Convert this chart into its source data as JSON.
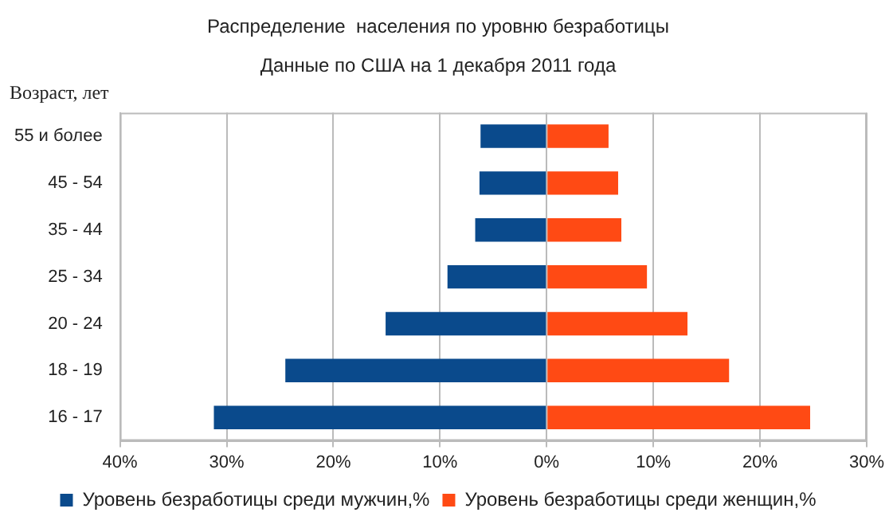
{
  "chart_data": {
    "type": "bar",
    "orientation": "horizontal",
    "stacked": true,
    "title": "Распределение  населения по уровню безработицы",
    "subtitle": "Данные по США на 1 декабря 2011 года",
    "ylabel": "Возраст, лет",
    "categories": [
      "55 и более",
      "45 - 54",
      "35 - 44",
      "25 - 34",
      "20 - 24",
      "18 - 19",
      "16 - 17"
    ],
    "series": [
      {
        "name": "Уровень безработицы среди мужчин,%",
        "color": "#0a4a8c",
        "values": [
          -6.2,
          -6.3,
          -6.7,
          -9.3,
          -15.1,
          -24.5,
          -31.2
        ]
      },
      {
        "name": "Уровень безработицы среди женщин,%",
        "color": "#ff4a14",
        "values": [
          5.8,
          6.7,
          7.0,
          9.4,
          13.2,
          17.1,
          24.7
        ]
      }
    ],
    "xlim": [
      -40,
      30
    ],
    "xticks": [
      {
        "value": -40,
        "label": "40%"
      },
      {
        "value": -30,
        "label": "30%"
      },
      {
        "value": -20,
        "label": "20%"
      },
      {
        "value": -10,
        "label": "10%"
      },
      {
        "value": 0,
        "label": "0%"
      },
      {
        "value": 10,
        "label": "10%"
      },
      {
        "value": 20,
        "label": "20%"
      },
      {
        "value": 30,
        "label": "30%"
      }
    ],
    "grid": "x",
    "legend": "bottom"
  }
}
